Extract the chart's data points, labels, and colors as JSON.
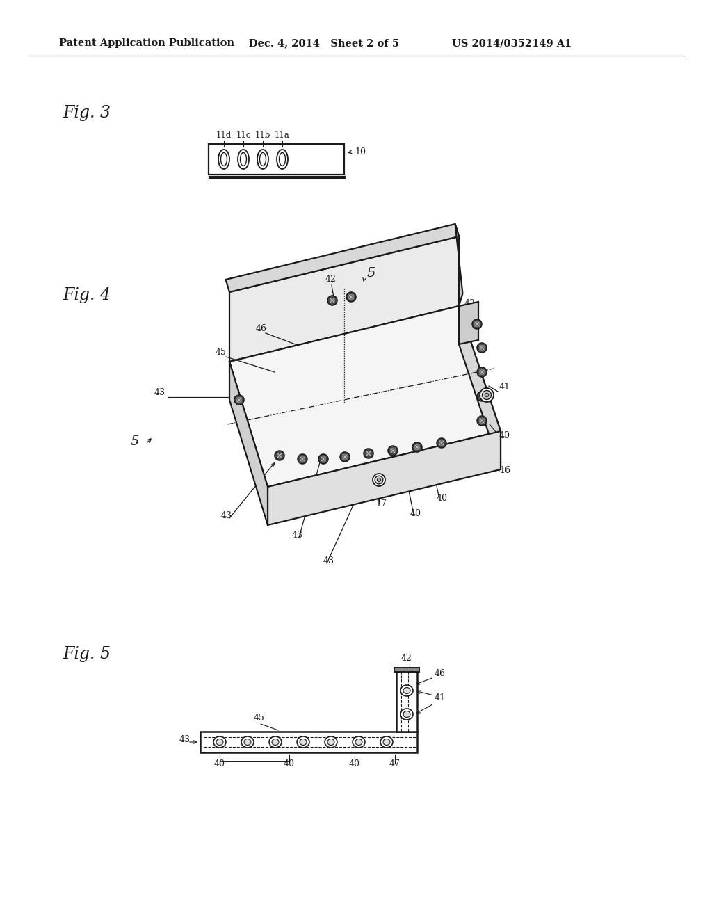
{
  "bg_color": "#ffffff",
  "line_color": "#1a1a1a",
  "header_left": "Patent Application Publication",
  "header_mid": "Dec. 4, 2014   Sheet 2 of 5",
  "header_right": "US 2014/0352149 A1",
  "fig3_label": "Fig. 3",
  "fig4_label": "Fig. 4",
  "fig5_label": "Fig. 5"
}
